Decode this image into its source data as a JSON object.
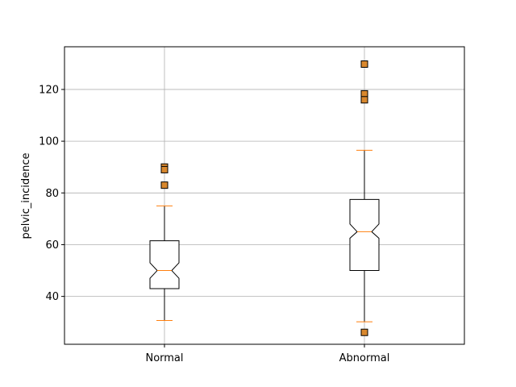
{
  "chart_data": {
    "type": "box",
    "title": "",
    "xlabel": "",
    "ylabel": "pelvic_incidence",
    "categories": [
      "Normal",
      "Abnormal"
    ],
    "ylim": [
      21.5,
      136.5
    ],
    "yticks": [
      40,
      60,
      80,
      100,
      120
    ],
    "grid": true,
    "notched": true,
    "boxes": [
      {
        "category": "Normal",
        "whisker_low": 30.7,
        "q1": 43.0,
        "median": 50.0,
        "q3": 61.5,
        "whisker_high": 75.0,
        "notch_low": 47.0,
        "notch_high": 53.0,
        "outliers": [
          90.0,
          89.0,
          83.0
        ]
      },
      {
        "category": "Abnormal",
        "whisker_low": 30.2,
        "q1": 50.0,
        "median": 65.0,
        "q3": 77.5,
        "whisker_high": 96.5,
        "notch_low": 62.5,
        "notch_high": 68.0,
        "outliers": [
          129.8,
          118.3,
          116.0,
          26.1
        ]
      }
    ],
    "colors": {
      "box": "#000000",
      "median": "#ff7f0e",
      "caps": "#ff7f0e",
      "outlier_fill": "#d9882e",
      "grid": "#b0b0b0"
    }
  }
}
